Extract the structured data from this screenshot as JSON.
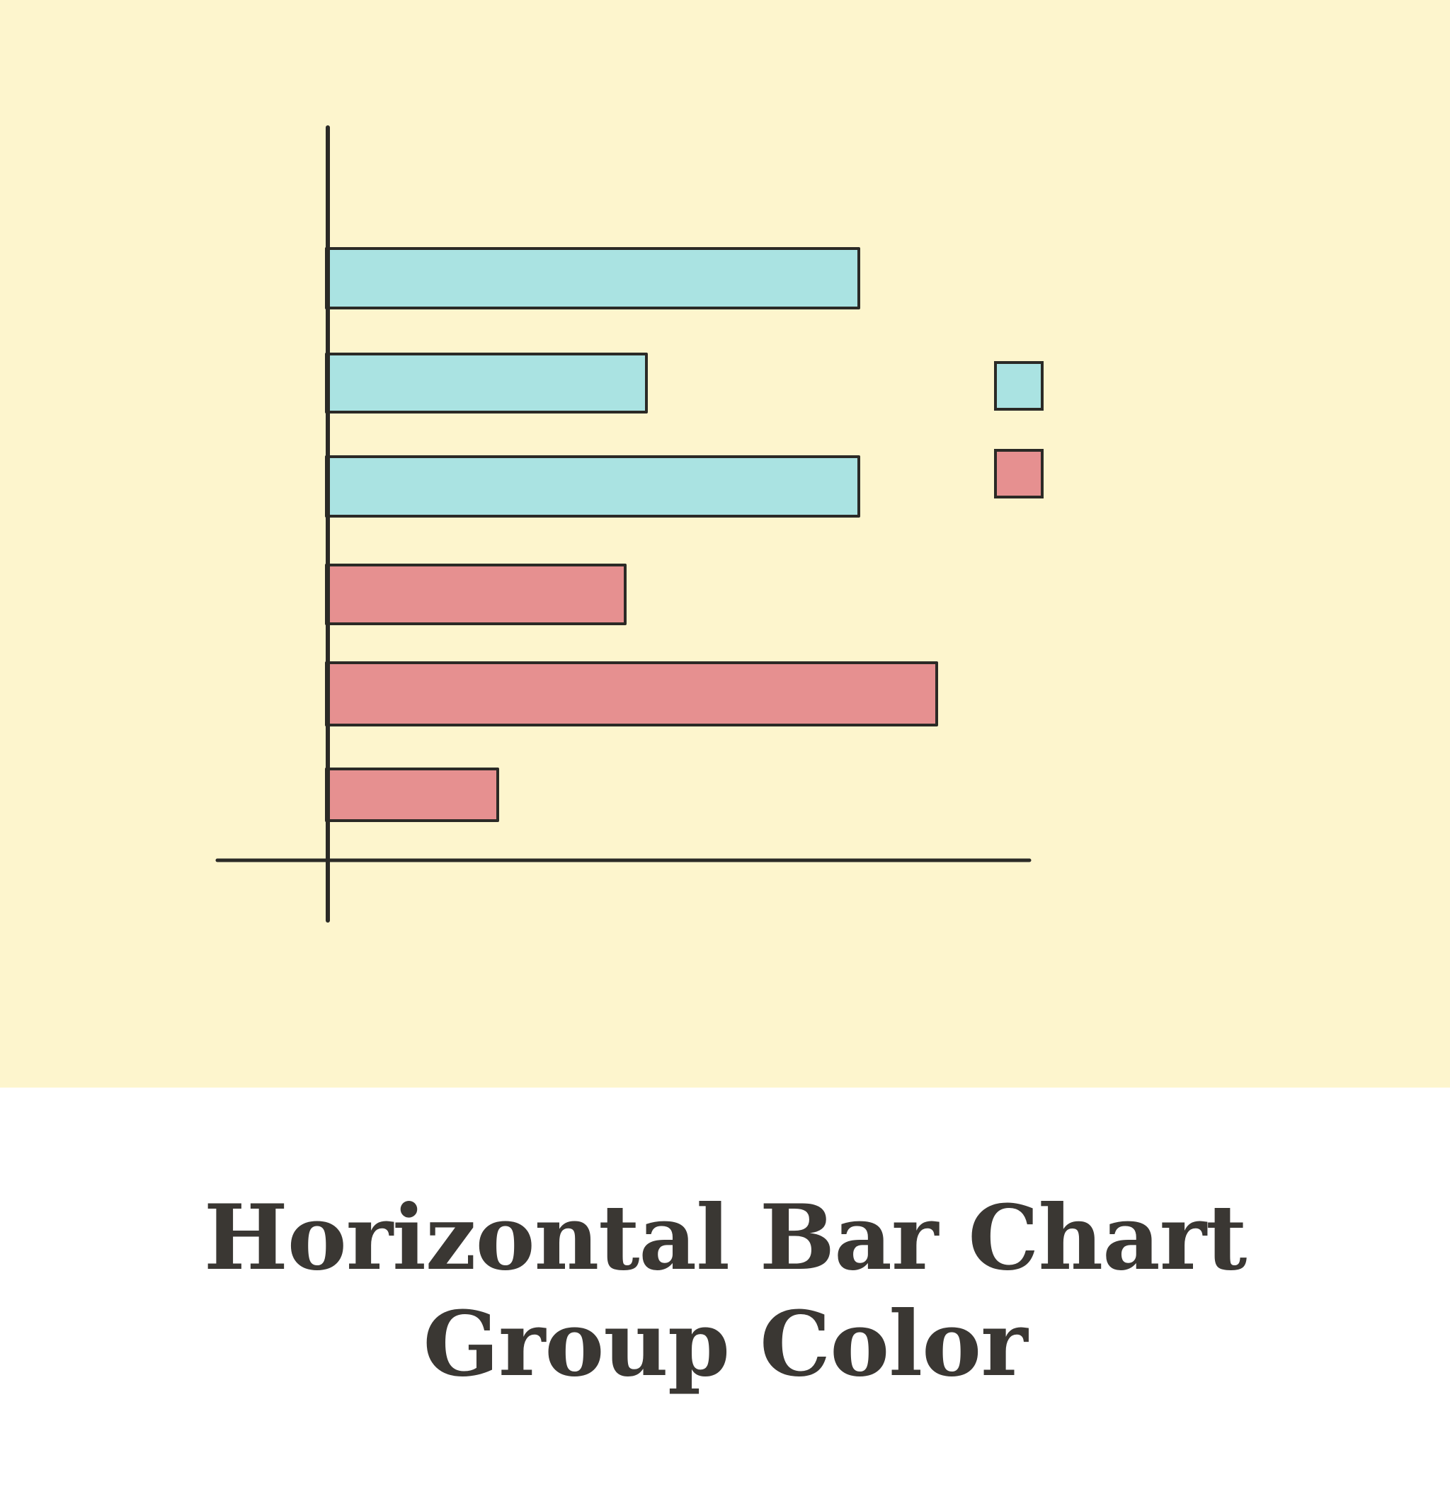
{
  "colors": {
    "panel_background": "#fdf5cd",
    "page_background": "#ffffff",
    "ink": "#2b2a26",
    "caption_text": "#3a3733",
    "series_1": "#aae3e2",
    "series_2": "#e69090"
  },
  "caption": {
    "line1": "Horizontal Bar Chart",
    "line2": "Group Color"
  },
  "chart_data": {
    "type": "bar",
    "orientation": "horizontal",
    "title": "",
    "xlabel": "",
    "ylabel": "",
    "tick_labels": false,
    "grid": false,
    "legend": "right",
    "xlim": [
      0,
      100
    ],
    "note_values": "relative bar lengths, percent of the x-axis length",
    "categories": [
      "",
      "",
      "",
      "",
      "",
      ""
    ],
    "bars": [
      {
        "group": 0,
        "value": 75
      },
      {
        "group": 0,
        "value": 45
      },
      {
        "group": 0,
        "value": 75
      },
      {
        "group": 1,
        "value": 42
      },
      {
        "group": 1,
        "value": 86
      },
      {
        "group": 1,
        "value": 24
      }
    ],
    "series": [
      {
        "color_key": "series_1"
      },
      {
        "color_key": "series_2"
      }
    ]
  }
}
